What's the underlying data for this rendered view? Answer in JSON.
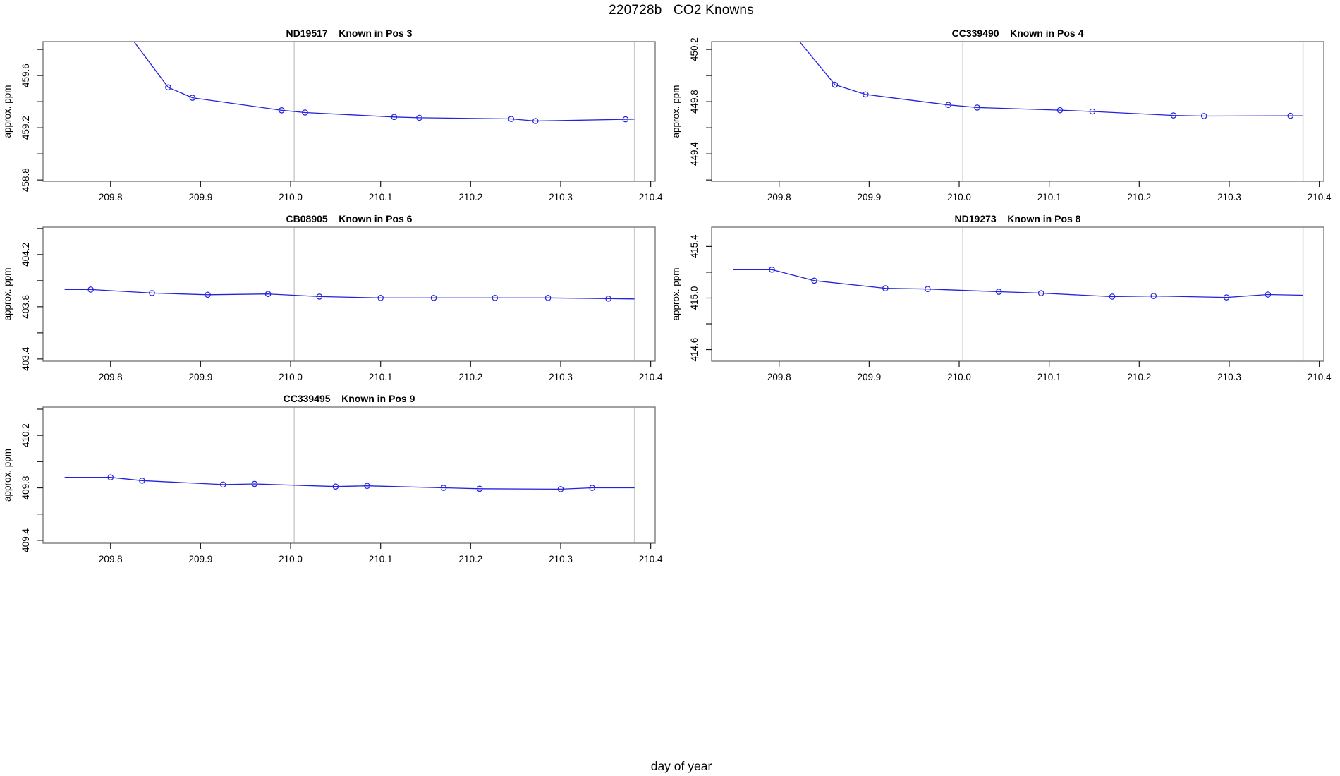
{
  "header": {
    "title": "220728b   CO2 Knowns"
  },
  "footer": {
    "x_axis_label": "day of year"
  },
  "style": {
    "line_color": "#2323dd",
    "marker_color": "#2323dd",
    "border_color": "#6f6f6f",
    "tick_color": "#1a1a1a",
    "vline_color": "#cccccc"
  },
  "chart_data": [
    {
      "type": "line",
      "id": "ND19517",
      "title": "ND19517    Known in Pos 3",
      "ylabel": "approx. ppm",
      "grid": {
        "row": 0,
        "col": 0
      },
      "xlim": [
        209.725,
        210.405
      ],
      "ylim": [
        458.79,
        459.86
      ],
      "x_ticks": [
        209.8,
        209.9,
        210.0,
        210.1,
        210.2,
        210.3,
        210.4
      ],
      "y_ticks": [
        458.8,
        459.0,
        459.2,
        459.4,
        459.6,
        459.8
      ],
      "y_labeled_ticks": [
        458.8,
        459.2,
        459.6
      ],
      "vlines": [
        210.004,
        210.382
      ],
      "line": [
        [
          209.8,
          460.1
        ],
        [
          209.864,
          459.51
        ],
        [
          209.891,
          459.43
        ],
        [
          209.99,
          459.334
        ],
        [
          210.016,
          459.317
        ],
        [
          210.115,
          459.283
        ],
        [
          210.143,
          459.277
        ],
        [
          210.245,
          459.268
        ],
        [
          210.272,
          459.252
        ],
        [
          210.372,
          459.265
        ],
        [
          210.382,
          459.266
        ]
      ],
      "points": [
        [
          209.864,
          459.51
        ],
        [
          209.891,
          459.43
        ],
        [
          209.99,
          459.334
        ],
        [
          210.016,
          459.317
        ],
        [
          210.115,
          459.283
        ],
        [
          210.143,
          459.277
        ],
        [
          210.245,
          459.268
        ],
        [
          210.272,
          459.252
        ],
        [
          210.372,
          459.265
        ]
      ]
    },
    {
      "type": "line",
      "id": "CC339490",
      "title": "CC339490    Known in Pos 4",
      "ylabel": "approx. ppm",
      "grid": {
        "row": 0,
        "col": 1
      },
      "xlim": [
        209.725,
        210.405
      ],
      "ylim": [
        449.19,
        450.26
      ],
      "x_ticks": [
        209.8,
        209.9,
        210.0,
        210.1,
        210.2,
        210.3,
        210.4
      ],
      "y_ticks": [
        449.2,
        449.4,
        449.6,
        449.8,
        450.0,
        450.2
      ],
      "y_labeled_ticks": [
        449.4,
        449.8,
        450.2
      ],
      "vlines": [
        210.004,
        210.382
      ],
      "line": [
        [
          209.8,
          450.45
        ],
        [
          209.862,
          449.93
        ],
        [
          209.896,
          449.855
        ],
        [
          209.988,
          449.775
        ],
        [
          210.02,
          449.755
        ],
        [
          210.112,
          449.735
        ],
        [
          210.148,
          449.725
        ],
        [
          210.238,
          449.695
        ],
        [
          210.272,
          449.69
        ],
        [
          210.368,
          449.692
        ],
        [
          210.382,
          449.692
        ]
      ],
      "points": [
        [
          209.862,
          449.93
        ],
        [
          209.896,
          449.855
        ],
        [
          209.988,
          449.775
        ],
        [
          210.02,
          449.755
        ],
        [
          210.112,
          449.735
        ],
        [
          210.148,
          449.725
        ],
        [
          210.238,
          449.695
        ],
        [
          210.272,
          449.69
        ],
        [
          210.368,
          449.692
        ]
      ]
    },
    {
      "type": "line",
      "id": "CB08905",
      "title": "CB08905    Known in Pos 6",
      "ylabel": "approx. ppm",
      "grid": {
        "row": 1,
        "col": 0
      },
      "xlim": [
        209.725,
        210.405
      ],
      "ylim": [
        403.383,
        404.41
      ],
      "x_ticks": [
        209.8,
        209.9,
        210.0,
        210.1,
        210.2,
        210.3,
        210.4
      ],
      "y_ticks": [
        403.4,
        403.6,
        403.8,
        404.0,
        404.2,
        404.4
      ],
      "y_labeled_ticks": [
        403.4,
        403.8,
        404.2
      ],
      "vlines": [
        210.004,
        210.382
      ],
      "line": [
        [
          209.749,
          403.932
        ],
        [
          209.778,
          403.932
        ],
        [
          209.846,
          403.905
        ],
        [
          209.908,
          403.892
        ],
        [
          209.975,
          403.898
        ],
        [
          210.032,
          403.878
        ],
        [
          210.1,
          403.868
        ],
        [
          210.159,
          403.868
        ],
        [
          210.227,
          403.868
        ],
        [
          210.286,
          403.868
        ],
        [
          210.353,
          403.862
        ],
        [
          210.382,
          403.86
        ]
      ],
      "points": [
        [
          209.778,
          403.932
        ],
        [
          209.846,
          403.905
        ],
        [
          209.908,
          403.892
        ],
        [
          209.975,
          403.898
        ],
        [
          210.032,
          403.878
        ],
        [
          210.1,
          403.868
        ],
        [
          210.159,
          403.868
        ],
        [
          210.227,
          403.868
        ],
        [
          210.286,
          403.868
        ],
        [
          210.353,
          403.862
        ]
      ]
    },
    {
      "type": "line",
      "id": "ND19273",
      "title": "ND19273    Known in Pos 8",
      "ylabel": "approx. ppm",
      "grid": {
        "row": 1,
        "col": 1
      },
      "xlim": [
        209.725,
        210.405
      ],
      "ylim": [
        414.51,
        415.55
      ],
      "x_ticks": [
        209.8,
        209.9,
        210.0,
        210.1,
        210.2,
        210.3,
        210.4
      ],
      "y_ticks": [
        414.6,
        414.8,
        415.0,
        415.2,
        415.4
      ],
      "y_labeled_ticks": [
        414.6,
        415.0,
        415.4
      ],
      "vlines": [
        210.004,
        210.382
      ],
      "line": [
        [
          209.749,
          415.22
        ],
        [
          209.792,
          415.22
        ],
        [
          209.839,
          415.135
        ],
        [
          209.918,
          415.076
        ],
        [
          209.965,
          415.07
        ],
        [
          210.044,
          415.049
        ],
        [
          210.091,
          415.038
        ],
        [
          210.17,
          415.011
        ],
        [
          210.216,
          415.016
        ],
        [
          210.297,
          415.005
        ],
        [
          210.343,
          415.027
        ],
        [
          210.382,
          415.022
        ]
      ],
      "points": [
        [
          209.792,
          415.22
        ],
        [
          209.839,
          415.135
        ],
        [
          209.918,
          415.076
        ],
        [
          209.965,
          415.07
        ],
        [
          210.044,
          415.049
        ],
        [
          210.091,
          415.038
        ],
        [
          210.17,
          415.011
        ],
        [
          210.216,
          415.016
        ],
        [
          210.297,
          415.005
        ],
        [
          210.343,
          415.027
        ]
      ]
    },
    {
      "type": "line",
      "id": "CC339495",
      "title": "CC339495    Known in Pos 9",
      "ylabel": "approx. ppm",
      "grid": {
        "row": 2,
        "col": 0
      },
      "xlim": [
        209.725,
        210.405
      ],
      "ylim": [
        409.378,
        410.416
      ],
      "x_ticks": [
        209.8,
        209.9,
        210.0,
        210.1,
        210.2,
        210.3,
        210.4
      ],
      "y_ticks": [
        409.4,
        409.6,
        409.8,
        410.0,
        410.2,
        410.4
      ],
      "y_labeled_ticks": [
        409.4,
        409.8,
        410.2
      ],
      "vlines": [
        210.004,
        210.382
      ],
      "line": [
        [
          209.749,
          409.88
        ],
        [
          209.8,
          409.88
        ],
        [
          209.835,
          409.855
        ],
        [
          209.925,
          409.825
        ],
        [
          209.96,
          409.83
        ],
        [
          210.05,
          409.81
        ],
        [
          210.085,
          409.815
        ],
        [
          210.17,
          409.8
        ],
        [
          210.21,
          409.793
        ],
        [
          210.3,
          409.79
        ],
        [
          210.335,
          409.8
        ],
        [
          210.382,
          409.8
        ]
      ],
      "points": [
        [
          209.8,
          409.88
        ],
        [
          209.835,
          409.855
        ],
        [
          209.925,
          409.825
        ],
        [
          209.96,
          409.83
        ],
        [
          210.05,
          409.81
        ],
        [
          210.085,
          409.815
        ],
        [
          210.17,
          409.8
        ],
        [
          210.21,
          409.793
        ],
        [
          210.3,
          409.79
        ],
        [
          210.335,
          409.8
        ]
      ]
    }
  ]
}
